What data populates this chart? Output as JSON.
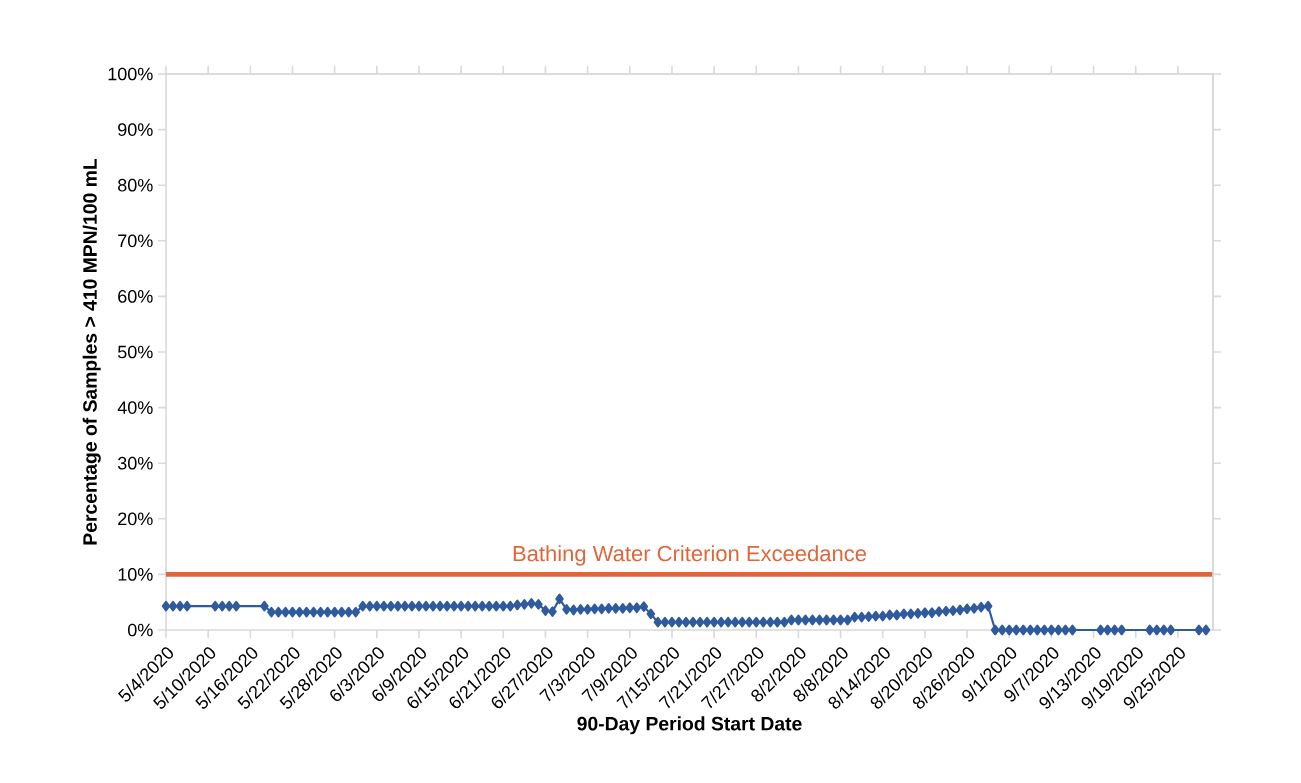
{
  "chart_data": {
    "type": "line",
    "xlabel": "90-Day Period Start Date",
    "ylabel": "Percentage of Samples > 410 MPN/100 mL",
    "x": [
      "2020-05-04",
      "2020-05-05",
      "2020-05-06",
      "2020-05-07",
      "2020-05-11",
      "2020-05-12",
      "2020-05-13",
      "2020-05-14",
      "2020-05-18",
      "2020-05-19",
      "2020-05-20",
      "2020-05-21",
      "2020-05-22",
      "2020-05-23",
      "2020-05-24",
      "2020-05-25",
      "2020-05-26",
      "2020-05-27",
      "2020-05-28",
      "2020-05-29",
      "2020-05-30",
      "2020-05-31",
      "2020-06-01",
      "2020-06-02",
      "2020-06-03",
      "2020-06-04",
      "2020-06-05",
      "2020-06-06",
      "2020-06-07",
      "2020-06-08",
      "2020-06-09",
      "2020-06-10",
      "2020-06-11",
      "2020-06-12",
      "2020-06-13",
      "2020-06-14",
      "2020-06-15",
      "2020-06-16",
      "2020-06-17",
      "2020-06-18",
      "2020-06-19",
      "2020-06-20",
      "2020-06-21",
      "2020-06-22",
      "2020-06-23",
      "2020-06-24",
      "2020-06-25",
      "2020-06-26",
      "2020-06-27",
      "2020-06-28",
      "2020-06-29",
      "2020-06-30",
      "2020-07-01",
      "2020-07-02",
      "2020-07-03",
      "2020-07-04",
      "2020-07-05",
      "2020-07-06",
      "2020-07-07",
      "2020-07-08",
      "2020-07-09",
      "2020-07-10",
      "2020-07-11",
      "2020-07-12",
      "2020-07-13",
      "2020-07-14",
      "2020-07-15",
      "2020-07-16",
      "2020-07-17",
      "2020-07-18",
      "2020-07-19",
      "2020-07-20",
      "2020-07-21",
      "2020-07-22",
      "2020-07-23",
      "2020-07-24",
      "2020-07-25",
      "2020-07-26",
      "2020-07-27",
      "2020-07-28",
      "2020-07-29",
      "2020-07-30",
      "2020-07-31",
      "2020-08-01",
      "2020-08-02",
      "2020-08-03",
      "2020-08-04",
      "2020-08-05",
      "2020-08-06",
      "2020-08-07",
      "2020-08-08",
      "2020-08-09",
      "2020-08-10",
      "2020-08-11",
      "2020-08-12",
      "2020-08-13",
      "2020-08-14",
      "2020-08-15",
      "2020-08-16",
      "2020-08-17",
      "2020-08-18",
      "2020-08-19",
      "2020-08-20",
      "2020-08-21",
      "2020-08-22",
      "2020-08-23",
      "2020-08-24",
      "2020-08-25",
      "2020-08-26",
      "2020-08-27",
      "2020-08-28",
      "2020-08-29",
      "2020-08-30",
      "2020-08-31",
      "2020-09-01",
      "2020-09-02",
      "2020-09-03",
      "2020-09-04",
      "2020-09-05",
      "2020-09-06",
      "2020-09-07",
      "2020-09-08",
      "2020-09-09",
      "2020-09-10",
      "2020-09-14",
      "2020-09-15",
      "2020-09-16",
      "2020-09-17",
      "2020-09-21",
      "2020-09-22",
      "2020-09-23",
      "2020-09-24",
      "2020-09-28",
      "2020-09-29"
    ],
    "values": [
      4.3,
      4.3,
      4.3,
      4.3,
      4.3,
      4.3,
      4.3,
      4.3,
      4.3,
      3.2,
      3.2,
      3.2,
      3.2,
      3.2,
      3.2,
      3.2,
      3.2,
      3.2,
      3.2,
      3.2,
      3.2,
      3.2,
      4.3,
      4.3,
      4.3,
      4.3,
      4.3,
      4.3,
      4.3,
      4.3,
      4.3,
      4.3,
      4.3,
      4.3,
      4.3,
      4.3,
      4.3,
      4.3,
      4.3,
      4.3,
      4.3,
      4.3,
      4.3,
      4.3,
      4.5,
      4.6,
      4.8,
      4.6,
      3.5,
      3.3,
      5.6,
      3.7,
      3.6,
      3.7,
      3.7,
      3.8,
      3.8,
      3.9,
      3.9,
      3.9,
      4.0,
      4.0,
      4.2,
      2.9,
      1.4,
      1.4,
      1.4,
      1.4,
      1.4,
      1.4,
      1.4,
      1.4,
      1.4,
      1.4,
      1.4,
      1.4,
      1.4,
      1.4,
      1.4,
      1.4,
      1.4,
      1.4,
      1.4,
      1.8,
      1.8,
      1.8,
      1.8,
      1.8,
      1.8,
      1.8,
      1.8,
      1.8,
      2.3,
      2.3,
      2.4,
      2.5,
      2.5,
      2.7,
      2.7,
      2.9,
      2.9,
      3.0,
      3.1,
      3.1,
      3.3,
      3.4,
      3.5,
      3.6,
      3.8,
      3.9,
      4.1,
      4.3,
      0,
      0,
      0,
      0,
      0,
      0,
      0,
      0,
      0,
      0,
      0,
      0,
      0,
      0,
      0,
      0,
      0,
      0,
      0,
      0,
      0,
      0
    ],
    "color": "#2f5b9e",
    "marker": "diamond",
    "line_style": "solid",
    "xlim": [
      "2020-05-04",
      "2020-09-30"
    ],
    "xticks": [
      {
        "value": "2020-05-04",
        "label": "5/4/2020"
      },
      {
        "value": "2020-05-10",
        "label": "5/10/2020"
      },
      {
        "value": "2020-05-16",
        "label": "5/16/2020"
      },
      {
        "value": "2020-05-22",
        "label": "5/22/2020"
      },
      {
        "value": "2020-05-28",
        "label": "5/28/2020"
      },
      {
        "value": "2020-06-03",
        "label": "6/3/2020"
      },
      {
        "value": "2020-06-09",
        "label": "6/9/2020"
      },
      {
        "value": "2020-06-15",
        "label": "6/15/2020"
      },
      {
        "value": "2020-06-21",
        "label": "6/21/2020"
      },
      {
        "value": "2020-06-27",
        "label": "6/27/2020"
      },
      {
        "value": "2020-07-03",
        "label": "7/3/2020"
      },
      {
        "value": "2020-07-09",
        "label": "7/9/2020"
      },
      {
        "value": "2020-07-15",
        "label": "7/15/2020"
      },
      {
        "value": "2020-07-21",
        "label": "7/21/2020"
      },
      {
        "value": "2020-07-27",
        "label": "7/27/2020"
      },
      {
        "value": "2020-08-02",
        "label": "8/2/2020"
      },
      {
        "value": "2020-08-08",
        "label": "8/8/2020"
      },
      {
        "value": "2020-08-14",
        "label": "8/14/2020"
      },
      {
        "value": "2020-08-20",
        "label": "8/20/2020"
      },
      {
        "value": "2020-08-26",
        "label": "8/26/2020"
      },
      {
        "value": "2020-09-01",
        "label": "9/1/2020"
      },
      {
        "value": "2020-09-07",
        "label": "9/7/2020"
      },
      {
        "value": "2020-09-13",
        "label": "9/13/2020"
      },
      {
        "value": "2020-09-19",
        "label": "9/19/2020"
      },
      {
        "value": "2020-09-25",
        "label": "9/25/2020"
      }
    ],
    "ylim": [
      0,
      100
    ],
    "yticks": [
      {
        "value": 0,
        "label": "0%"
      },
      {
        "value": 10,
        "label": "10%"
      },
      {
        "value": 20,
        "label": "20%"
      },
      {
        "value": 30,
        "label": "30%"
      },
      {
        "value": 40,
        "label": "40%"
      },
      {
        "value": 50,
        "label": "50%"
      },
      {
        "value": 60,
        "label": "60%"
      },
      {
        "value": 70,
        "label": "70%"
      },
      {
        "value": 80,
        "label": "80%"
      },
      {
        "value": 90,
        "label": "90%"
      },
      {
        "value": 100,
        "label": "100%"
      }
    ],
    "ref_lines": [
      {
        "axis": "y",
        "value": 10,
        "label": "Bathing Water Criterion Exceedance",
        "color": "#e0663a"
      }
    ]
  }
}
